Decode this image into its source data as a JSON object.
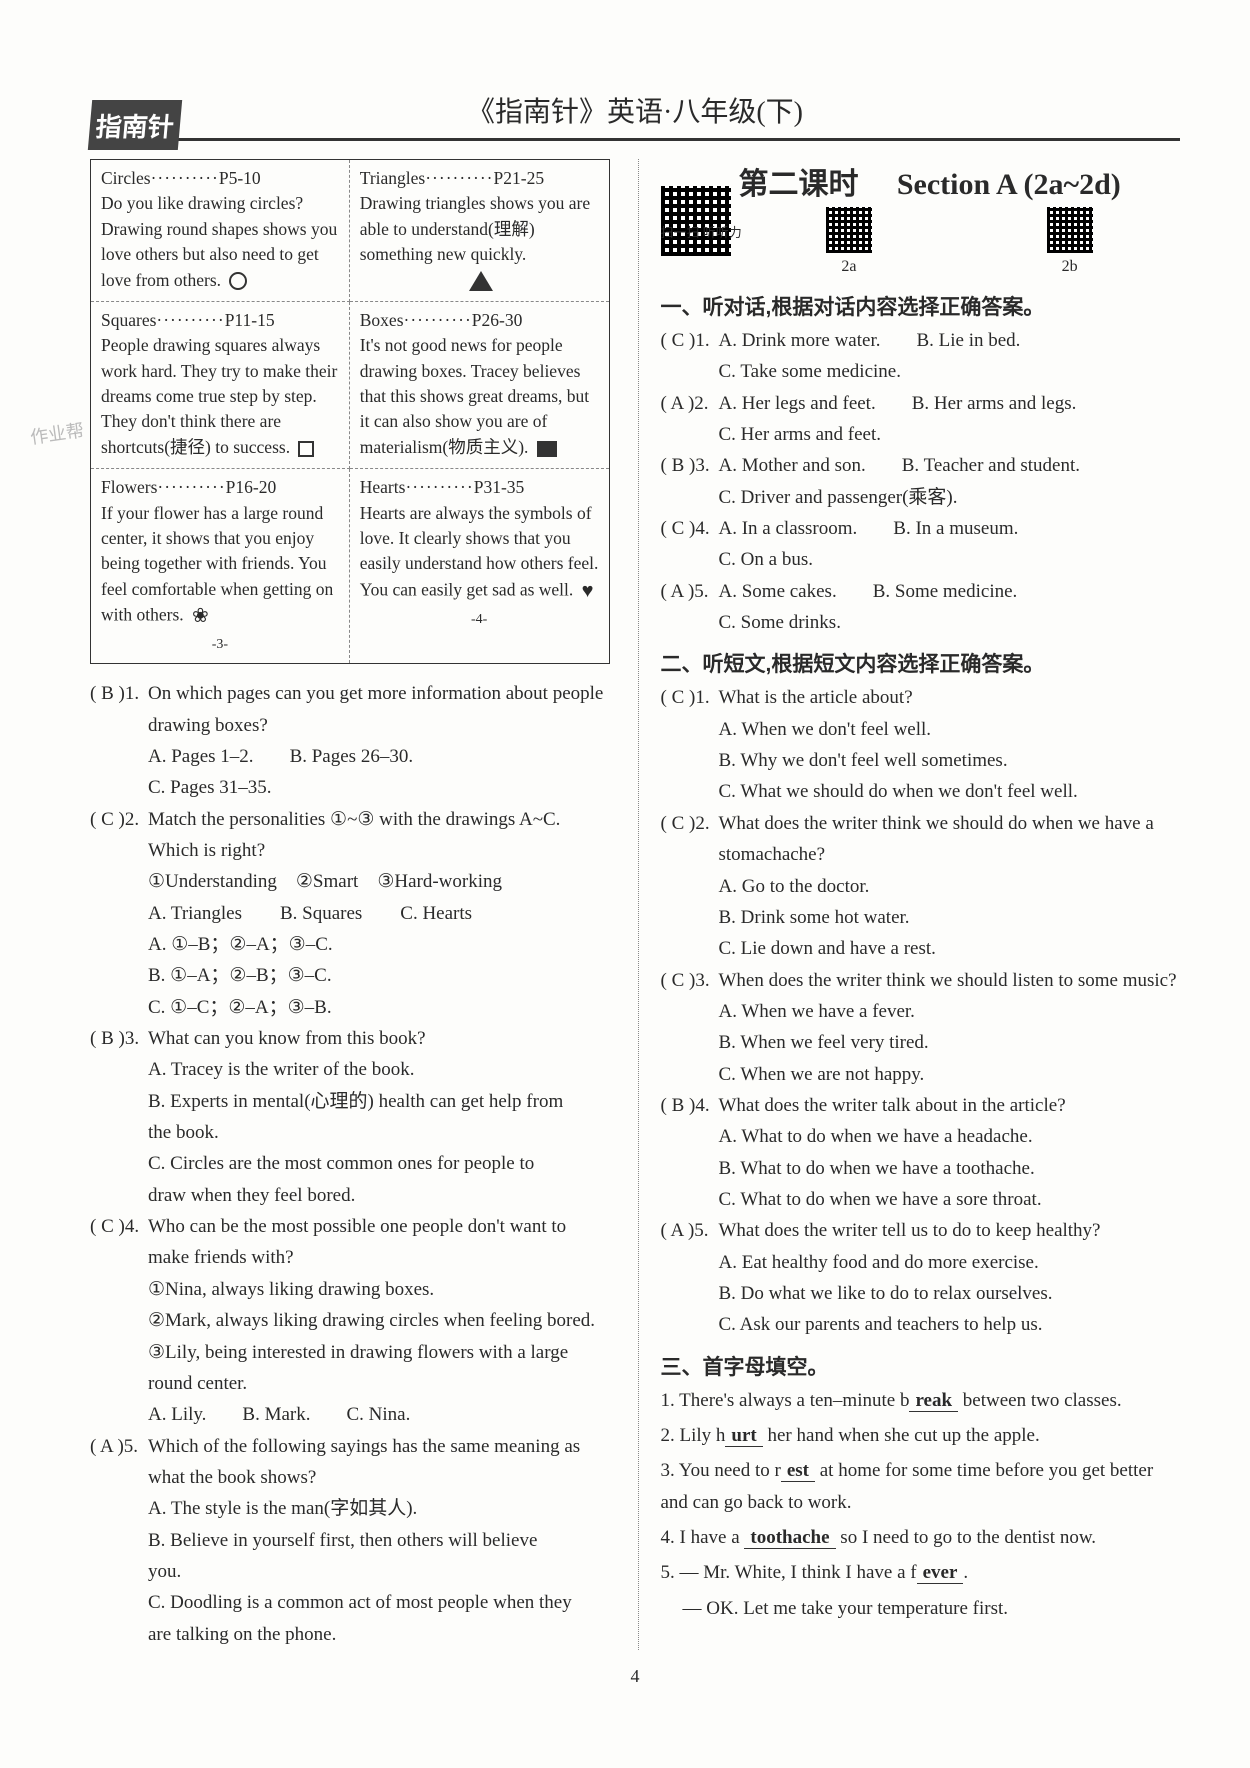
{
  "header": {
    "badge": "指南针",
    "title": "《指南针》英语·八年级(下)"
  },
  "bookGrid": {
    "cells": [
      {
        "head": "Circles",
        "pages": "P5-10",
        "body": "Do you like drawing circles? Drawing round shapes shows you love others but also need to get love from others."
      },
      {
        "head": "Triangles",
        "pages": "P21-25",
        "body": "Drawing triangles shows you are able to understand(理解) something new quickly."
      },
      {
        "head": "Squares",
        "pages": "P11-15",
        "body": "People drawing squares always work hard. They try to make their dreams come true step by step. They don't think there are shortcuts(捷径) to success."
      },
      {
        "head": "Boxes",
        "pages": "P26-30",
        "body": "It's not good news for people drawing boxes. Tracey believes that this shows great dreams, but it can also show you are of materialism(物质主义)."
      },
      {
        "head": "Flowers",
        "pages": "P16-20",
        "body": "If your flower has a large round center, it shows that you enjoy being together with friends. You feel comfortable when getting on with others."
      },
      {
        "head": "Hearts",
        "pages": "P31-35",
        "body": "Hearts are always the symbols of love. It clearly shows that you easily understand how others feel. You can easily get sad as well."
      }
    ],
    "footLeft": "-3-",
    "footRight": "-4-"
  },
  "leftQuestions": [
    {
      "ans": "B",
      "num": "1.",
      "stem": "On which pages can you get more information about people drawing boxes?",
      "opts": [
        [
          "A. Pages 1–2.",
          "B. Pages 26–30."
        ],
        [
          "C. Pages 31–35."
        ]
      ]
    },
    {
      "ans": "C",
      "num": "2.",
      "stem": "Match the personalities ①~③ with the drawings A~C. Which is right?",
      "extra": [
        "①Understanding　②Smart　③Hard-working",
        "A. Triangles　　B. Squares　　C. Hearts"
      ],
      "opts": [
        [
          "A. ①–B；②–A；③–C."
        ],
        [
          "B. ①–A；②–B；③–C."
        ],
        [
          "C. ①–C；②–A；③–B."
        ]
      ]
    },
    {
      "ans": "B",
      "num": "3.",
      "stem": "What can you know from this book?",
      "opts": [
        [
          "A. Tracey is the writer of the book."
        ],
        [
          "B. Experts in mental(心理的) health can get help from the book."
        ],
        [
          "C. Circles are the most common ones for people to draw when they feel bored."
        ]
      ]
    },
    {
      "ans": "C",
      "num": "4.",
      "stem": "Who can be the most possible one people don't want to make friends with?",
      "extra": [
        "①Nina, always liking drawing boxes.",
        "②Mark, always liking drawing circles when feeling bored.",
        "③Lily, being interested in drawing flowers with a large round center."
      ],
      "opts": [
        [
          "A. Lily.",
          "B. Mark.",
          "C. Nina."
        ]
      ]
    },
    {
      "ans": "A",
      "num": "5.",
      "stem": "Which of the following sayings has the same meaning as what the book shows?",
      "opts": [
        [
          "A. The style is the man(字如其人)."
        ],
        [
          "B. Believe in yourself first, then others will believe you."
        ],
        [
          "C. Doodling is a common act of most people when they are talking on the phone."
        ]
      ]
    }
  ],
  "rightHead": {
    "lesson": "第二课时",
    "section": "Section A (2a~2d)",
    "scanLabel": "扫一扫 听听力",
    "qr2a": "2a",
    "qr2b": "2b"
  },
  "sec1": {
    "title": "一、听对话,根据对话内容选择正确答案。",
    "items": [
      {
        "ans": "C",
        "num": "1.",
        "opts": [
          "A. Drink more water.",
          "B. Lie in bed.",
          "C. Take some medicine."
        ]
      },
      {
        "ans": "A",
        "num": "2.",
        "opts": [
          "A. Her legs and feet.",
          "B. Her arms and legs.",
          "C. Her arms and feet."
        ]
      },
      {
        "ans": "B",
        "num": "3.",
        "opts": [
          "A. Mother and son.",
          "B. Teacher and student.",
          "C. Driver and passenger(乘客)."
        ]
      },
      {
        "ans": "C",
        "num": "4.",
        "opts": [
          "A. In a classroom.",
          "B. In a museum.",
          "C. On a bus."
        ]
      },
      {
        "ans": "A",
        "num": "5.",
        "opts": [
          "A. Some cakes.",
          "B. Some medicine.",
          "C. Some drinks."
        ]
      }
    ]
  },
  "sec2": {
    "title": "二、听短文,根据短文内容选择正确答案。",
    "items": [
      {
        "ans": "C",
        "num": "1.",
        "stem": "What is the article about?",
        "opts": [
          "A. When we don't feel well.",
          "B. Why we don't feel well sometimes.",
          "C. What we should do when we don't feel well."
        ]
      },
      {
        "ans": "C",
        "num": "2.",
        "stem": "What does the writer think we should do when we have a stomachache?",
        "opts": [
          "A. Go to the doctor.",
          "B. Drink some hot water.",
          "C. Lie down and have a rest."
        ]
      },
      {
        "ans": "C",
        "num": "3.",
        "stem": "When does the writer think we should listen to some music?",
        "opts": [
          "A. When we have a fever.",
          "B. When we feel very tired.",
          "C. When we are not happy."
        ]
      },
      {
        "ans": "B",
        "num": "4.",
        "stem": "What does the writer talk about in the article?",
        "opts": [
          "A. What to do when we have a headache.",
          "B. What to do when we have a toothache.",
          "C. What to do when we have a sore throat."
        ]
      },
      {
        "ans": "A",
        "num": "5.",
        "stem": "What does the writer tell us to do to keep healthy?",
        "opts": [
          "A. Eat healthy food and do more exercise.",
          "B. Do what we like to do to relax ourselves.",
          "C. Ask our parents and teachers to help us."
        ]
      }
    ]
  },
  "sec3": {
    "title": "三、首字母填空。",
    "items": [
      {
        "num": "1.",
        "pre": "There's always a ten–minute b",
        "ans": "reak",
        "post": " between two classes."
      },
      {
        "num": "2.",
        "pre": "Lily h",
        "ans": "urt",
        "post": " her hand when she cut up the apple."
      },
      {
        "num": "3.",
        "pre": "You need to r",
        "ans": "est",
        "post": " at home for some time before you get better and can go back to work."
      },
      {
        "num": "4.",
        "pre": "I have a ",
        "ans": "toothache",
        "post": " so I need to go to the dentist now."
      },
      {
        "num": "5.",
        "pre": "— Mr. White, I think I have a f",
        "ans": "ever",
        "post": ".",
        "line2": "— OK. Let me take your temperature first."
      }
    ]
  },
  "pageNumber": "4",
  "watermark": "作业帮"
}
